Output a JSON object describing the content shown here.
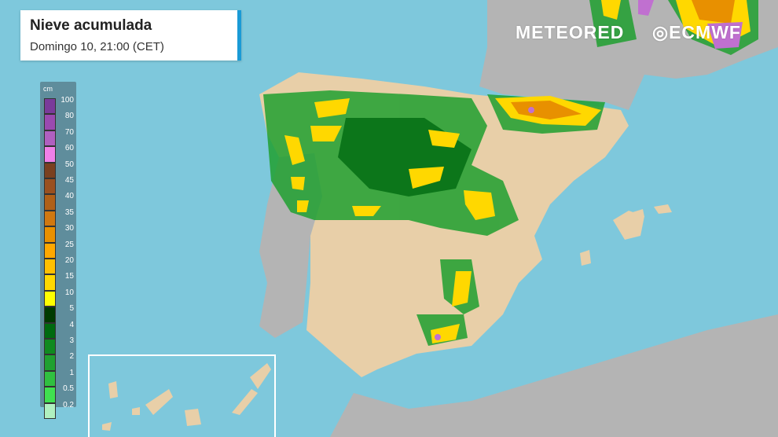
{
  "header": {
    "title": "Nieve acumulada",
    "subtitle": "Domingo 10, 21:00 (CET)"
  },
  "logos": {
    "meteored": "METEORED",
    "ecmwf": "ECMWF"
  },
  "legend": {
    "unit": "cm",
    "items": [
      {
        "label": "100",
        "color": "#7a3a9a"
      },
      {
        "label": "80",
        "color": "#9a4ab0"
      },
      {
        "label": "70",
        "color": "#b060c0"
      },
      {
        "label": "60",
        "color": "#f080e8"
      },
      {
        "label": "50",
        "color": "#7a4020"
      },
      {
        "label": "45",
        "color": "#9a5020"
      },
      {
        "label": "40",
        "color": "#b06018"
      },
      {
        "label": "35",
        "color": "#d07810"
      },
      {
        "label": "30",
        "color": "#e89000"
      },
      {
        "label": "25",
        "color": "#ffa800"
      },
      {
        "label": "20",
        "color": "#ffc000"
      },
      {
        "label": "15",
        "color": "#ffd800"
      },
      {
        "label": "10",
        "color": "#ffff00"
      },
      {
        "label": "5",
        "color": "#003a00"
      },
      {
        "label": "4",
        "color": "#006a10"
      },
      {
        "label": "3",
        "color": "#108a20"
      },
      {
        "label": "2",
        "color": "#20a030"
      },
      {
        "label": "1",
        "color": "#30c040"
      },
      {
        "label": "0.5",
        "color": "#40e050"
      },
      {
        "label": "0.2",
        "color": "#b0f0c0"
      }
    ]
  },
  "colors": {
    "sea": "#7ec8dc",
    "land_spain": "#e8cfa8",
    "land_other": "#b4b4b4",
    "accent": "#1a9ad6"
  }
}
